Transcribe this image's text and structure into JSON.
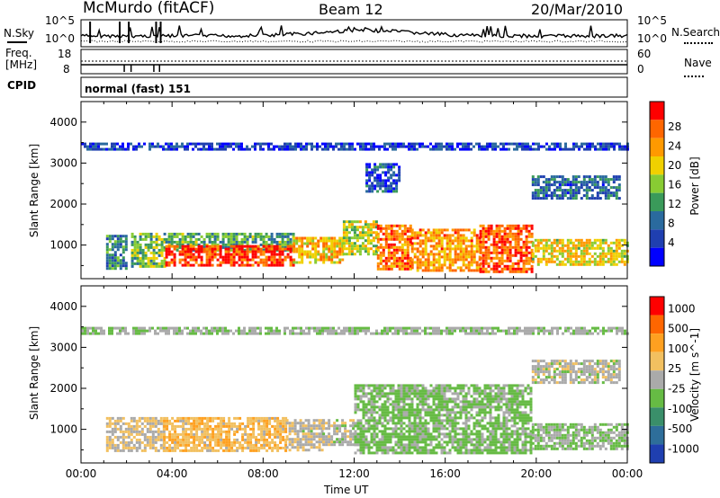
{
  "header": {
    "station": "McMurdo (fitACF)",
    "beam": "Beam 12",
    "date": "20/Mar/2010"
  },
  "parameter_panels": {
    "noise": {
      "left_label": "N.Sky",
      "right_label": "N.Search",
      "left_ticks": [
        "10^5",
        "10^0"
      ],
      "right_ticks": [
        "10^5",
        "10^0"
      ],
      "right_line_style": "dotted"
    },
    "frequency": {
      "left_label_1": "Freq.",
      "left_label_2": "[MHz]",
      "right_label": "Nave",
      "left_ticks": [
        "18",
        "8"
      ],
      "right_ticks": [
        "60",
        "0"
      ],
      "right_line_style": "dotted"
    },
    "cpid": {
      "label": "CPID",
      "text": "normal (fast) 151"
    }
  },
  "colors": {
    "power_scale": [
      "#0000ff",
      "#1f3fb0",
      "#2a6a9e",
      "#3a9a5a",
      "#88cc33",
      "#f0d000",
      "#ff9900",
      "#ff6600",
      "#ff0000"
    ],
    "velocity_scale": [
      "#1f3fb0",
      "#2e6e9a",
      "#3a8f6a",
      "#66bb44",
      "#aaaaaa",
      "#f2c060",
      "#ffa020",
      "#ff6600",
      "#ff0000"
    ]
  },
  "chart_data": [
    {
      "type": "heatmap",
      "name": "power",
      "xlabel": "",
      "ylabel": "Slant Range [km]",
      "xlim": [
        "00:00",
        "24:00"
      ],
      "ylim": [
        180,
        4500
      ],
      "y_ticks": [
        "4000",
        "3000",
        "2000",
        "1000"
      ],
      "colorbar_title": "Power [dB]",
      "colorbar_ticks": [
        "28",
        "24",
        "20",
        "16",
        "12",
        "8",
        "4"
      ],
      "value_range": [
        0,
        30
      ],
      "regions": [
        {
          "t0": 1.1,
          "t1": 2.0,
          "r0": 450,
          "r1": 1250,
          "value": 10
        },
        {
          "t0": 2.2,
          "t1": 3.7,
          "r0": 500,
          "r1": 1300,
          "value": 14
        },
        {
          "t0": 3.7,
          "t1": 9.3,
          "r0": 850,
          "r1": 1300,
          "value": 12
        },
        {
          "t0": 3.7,
          "t1": 9.3,
          "r0": 500,
          "r1": 1000,
          "value": 27
        },
        {
          "t0": 9.3,
          "t1": 11.5,
          "r0": 600,
          "r1": 1200,
          "value": 20
        },
        {
          "t0": 11.5,
          "t1": 13.0,
          "r0": 800,
          "r1": 1600,
          "value": 16
        },
        {
          "t0": 13.0,
          "t1": 14.5,
          "r0": 400,
          "r1": 1500,
          "value": 24
        },
        {
          "t0": 14.5,
          "t1": 17.5,
          "r0": 400,
          "r1": 1400,
          "value": 22
        },
        {
          "t0": 17.5,
          "t1": 19.8,
          "r0": 350,
          "r1": 1500,
          "value": 25
        },
        {
          "t0": 19.8,
          "t1": 24.0,
          "r0": 500,
          "r1": 1150,
          "value": 18
        },
        {
          "t0": 19.8,
          "t1": 23.6,
          "r0": 2150,
          "r1": 2700,
          "value": 8
        },
        {
          "t0": 12.5,
          "t1": 14.0,
          "r0": 2300,
          "r1": 3000,
          "value": 6
        },
        {
          "t0": 0.0,
          "t1": 24.0,
          "r0": 3350,
          "r1": 3500,
          "value": 5
        }
      ]
    },
    {
      "type": "heatmap",
      "name": "velocity",
      "xlabel": "Time UT",
      "ylabel": "Slant Range [km]",
      "xlim": [
        "00:00",
        "24:00"
      ],
      "ylim": [
        180,
        4500
      ],
      "x_ticks": [
        "00:00",
        "04:00",
        "08:00",
        "12:00",
        "16:00",
        "20:00",
        "00:00"
      ],
      "y_ticks": [
        "4000",
        "3000",
        "2000",
        "1000"
      ],
      "colorbar_title": "Velocity [m s^-1]",
      "colorbar_ticks": [
        "1000",
        "500",
        "100",
        "25",
        "-25",
        "-100",
        "-500",
        "-1000"
      ],
      "value_range": [
        -1200,
        1200
      ],
      "regions": [
        {
          "t0": 1.1,
          "t1": 3.6,
          "r0": 450,
          "r1": 1300,
          "value": 150
        },
        {
          "t0": 3.6,
          "t1": 9.0,
          "r0": 450,
          "r1": 1300,
          "value": 300
        },
        {
          "t0": 9.0,
          "t1": 10.6,
          "r0": 500,
          "r1": 1250,
          "value": 60
        },
        {
          "t0": 10.6,
          "t1": 12.0,
          "r0": 600,
          "r1": 1250,
          "value": 0
        },
        {
          "t0": 12.0,
          "t1": 19.8,
          "r0": 400,
          "r1": 2100,
          "value": -200
        },
        {
          "t0": 19.8,
          "t1": 24.0,
          "r0": 500,
          "r1": 1150,
          "value": -150
        },
        {
          "t0": 19.8,
          "t1": 23.6,
          "r0": 2150,
          "r1": 2700,
          "value": 5
        },
        {
          "t0": 0.0,
          "t1": 24.0,
          "r0": 3350,
          "r1": 3500,
          "value": -80
        }
      ]
    }
  ]
}
